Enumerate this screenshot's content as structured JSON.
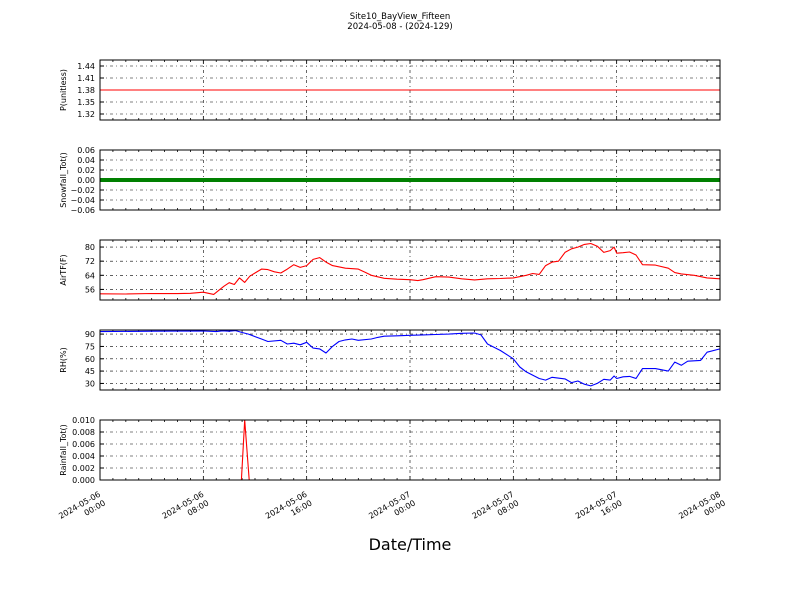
{
  "figure": {
    "title_line1": "Site10_BayView_Fifteen",
    "title_line2": "2024-05-08 - (2024-129)",
    "xlabel": "Date/Time"
  },
  "chart_data": [
    {
      "type": "line",
      "ylabel": "P(unitless)",
      "ylim": [
        1.305,
        1.455
      ],
      "yticks": [
        "1.44",
        "1.41",
        "1.38",
        "1.35",
        "1.32"
      ],
      "color": "#ff0000",
      "grid": true,
      "x_hours": [
        0,
        48
      ],
      "values": [
        [
          0,
          1.38
        ],
        [
          48,
          1.38
        ]
      ]
    },
    {
      "type": "line",
      "ylabel": "Snowfall_Tot()",
      "ylim": [
        -0.06,
        0.06
      ],
      "yticks": [
        "0.06",
        "0.04",
        "0.02",
        "0.00",
        "−0.02",
        "−0.04",
        "−0.06"
      ],
      "color": "#008000",
      "grid": true,
      "values": [
        [
          0,
          0.0
        ],
        [
          48,
          0.0
        ]
      ]
    },
    {
      "type": "line",
      "ylabel": "AirTF(F)",
      "ylim": [
        50,
        84
      ],
      "yticks": [
        "80",
        "72",
        "64",
        "56"
      ],
      "color": "#ff0000",
      "grid": true,
      "values": [
        [
          0,
          53.5
        ],
        [
          2,
          53.4
        ],
        [
          4,
          53.7
        ],
        [
          6,
          53.6
        ],
        [
          7,
          53.8
        ],
        [
          8,
          54.4
        ],
        [
          8.8,
          53.2
        ],
        [
          9.2,
          55.5
        ],
        [
          9.6,
          57.8
        ],
        [
          10,
          59.8
        ],
        [
          10.4,
          58.8
        ],
        [
          10.8,
          62.5
        ],
        [
          11.2,
          60.0
        ],
        [
          11.6,
          63.5
        ],
        [
          12,
          65.3
        ],
        [
          12.5,
          67.5
        ],
        [
          13,
          67.2
        ],
        [
          13.5,
          66.0
        ],
        [
          14,
          65.3
        ],
        [
          14.5,
          67.5
        ],
        [
          15,
          70.0
        ],
        [
          15.5,
          68.5
        ],
        [
          16,
          69.5
        ],
        [
          16.5,
          73.0
        ],
        [
          17,
          74.0
        ],
        [
          17.5,
          71.5
        ],
        [
          18,
          69.5
        ],
        [
          19,
          68.0
        ],
        [
          20,
          67.5
        ],
        [
          20.5,
          65.8
        ],
        [
          21,
          64.0
        ],
        [
          22,
          62.3
        ],
        [
          23,
          61.8
        ],
        [
          24,
          61.5
        ],
        [
          24.6,
          61.0
        ],
        [
          25,
          61.5
        ],
        [
          26,
          63.2
        ],
        [
          27,
          63.0
        ],
        [
          28,
          62.0
        ],
        [
          29,
          61.4
        ],
        [
          30,
          62.0
        ],
        [
          31,
          62.2
        ],
        [
          32,
          62.5
        ],
        [
          33,
          64.0
        ],
        [
          33.5,
          65.0
        ],
        [
          34,
          64.5
        ],
        [
          34.5,
          69.5
        ],
        [
          35,
          71.5
        ],
        [
          35.5,
          72.0
        ],
        [
          36,
          77.0
        ],
        [
          36.5,
          79.0
        ],
        [
          37,
          80.0
        ],
        [
          37.5,
          81.5
        ],
        [
          38,
          82.0
        ],
        [
          38.5,
          80.5
        ],
        [
          39,
          77.0
        ],
        [
          39.5,
          78.0
        ],
        [
          39.8,
          80.0
        ],
        [
          40,
          76.5
        ],
        [
          40.5,
          76.8
        ],
        [
          41,
          77.2
        ],
        [
          41.5,
          75.5
        ],
        [
          42,
          70.0
        ],
        [
          43,
          69.8
        ],
        [
          44,
          68.0
        ],
        [
          44.5,
          65.5
        ],
        [
          45,
          64.8
        ],
        [
          46,
          64.0
        ],
        [
          47,
          62.5
        ],
        [
          48,
          62.0
        ]
      ]
    },
    {
      "type": "line",
      "ylabel": "RH(%)",
      "ylim": [
        22,
        95
      ],
      "yticks": [
        "90",
        "75",
        "60",
        "45",
        "30"
      ],
      "color": "#0000ff",
      "grid": true,
      "values": [
        [
          0,
          93.0
        ],
        [
          4,
          93.5
        ],
        [
          8,
          93.8
        ],
        [
          9,
          93.0
        ],
        [
          9.5,
          94.0
        ],
        [
          10,
          93.5
        ],
        [
          10.5,
          94.3
        ],
        [
          11,
          92.0
        ],
        [
          11.5,
          90.0
        ],
        [
          12,
          87.0
        ],
        [
          12.5,
          84.0
        ],
        [
          13,
          81.0
        ],
        [
          14,
          82.5
        ],
        [
          14.5,
          78.0
        ],
        [
          15,
          79.0
        ],
        [
          15.5,
          77.0
        ],
        [
          16,
          80.0
        ],
        [
          16.5,
          73.0
        ],
        [
          17,
          72.0
        ],
        [
          17.5,
          67.0
        ],
        [
          18,
          75.0
        ],
        [
          18.5,
          81.0
        ],
        [
          19,
          83.0
        ],
        [
          19.5,
          84.0
        ],
        [
          20,
          82.5
        ],
        [
          21,
          84.0
        ],
        [
          21.5,
          86.0
        ],
        [
          22,
          87.5
        ],
        [
          23,
          88.0
        ],
        [
          24,
          88.5
        ],
        [
          25,
          89.0
        ],
        [
          26,
          89.5
        ],
        [
          27,
          90.0
        ],
        [
          28,
          91.0
        ],
        [
          29,
          91.3
        ],
        [
          29.5,
          89.0
        ],
        [
          30,
          78.0
        ],
        [
          31,
          70.0
        ],
        [
          32,
          60.0
        ],
        [
          32.5,
          50.0
        ],
        [
          33,
          44.0
        ],
        [
          34,
          36.0
        ],
        [
          34.5,
          34.0
        ],
        [
          35,
          37.5
        ],
        [
          36,
          35.5
        ],
        [
          36.5,
          31.0
        ],
        [
          37,
          33.0
        ],
        [
          37.5,
          29.0
        ],
        [
          38,
          27.0
        ],
        [
          38.5,
          30.0
        ],
        [
          39,
          35.0
        ],
        [
          39.5,
          34.0
        ],
        [
          39.8,
          39.0
        ],
        [
          40,
          36.0
        ],
        [
          40.5,
          38.0
        ],
        [
          41,
          38.5
        ],
        [
          41.5,
          36.0
        ],
        [
          42,
          48.0
        ],
        [
          43,
          48.0
        ],
        [
          44,
          45.0
        ],
        [
          44.5,
          56.0
        ],
        [
          45,
          52.0
        ],
        [
          45.5,
          57.0
        ],
        [
          46,
          57.5
        ],
        [
          46.5,
          58.0
        ],
        [
          47,
          68.0
        ],
        [
          48,
          72.0
        ]
      ]
    },
    {
      "type": "line",
      "ylabel": "Rainfall_Tot()",
      "ylim": [
        0,
        0.01
      ],
      "yticks": [
        "0.010",
        "0.008",
        "0.006",
        "0.004",
        "0.002",
        "0.000"
      ],
      "color": "#ff0000",
      "grid": true,
      "values": [
        [
          0,
          0
        ],
        [
          10.95,
          0
        ],
        [
          11.2,
          0.01
        ],
        [
          11.55,
          0
        ],
        [
          48,
          0
        ]
      ]
    }
  ],
  "x_axis": {
    "range_hours": [
      0,
      48
    ],
    "ticks": [
      {
        "hour": 0,
        "line1": "2024-05-06",
        "line2": "00:00"
      },
      {
        "hour": 8,
        "line1": "2024-05-06",
        "line2": "08:00"
      },
      {
        "hour": 16,
        "line1": "2024-05-06",
        "line2": "16:00"
      },
      {
        "hour": 24,
        "line1": "2024-05-07",
        "line2": "00:00"
      },
      {
        "hour": 32,
        "line1": "2024-05-07",
        "line2": "08:00"
      },
      {
        "hour": 40,
        "line1": "2024-05-07",
        "line2": "16:00"
      },
      {
        "hour": 48,
        "line1": "2024-05-08",
        "line2": "00:00"
      }
    ]
  }
}
